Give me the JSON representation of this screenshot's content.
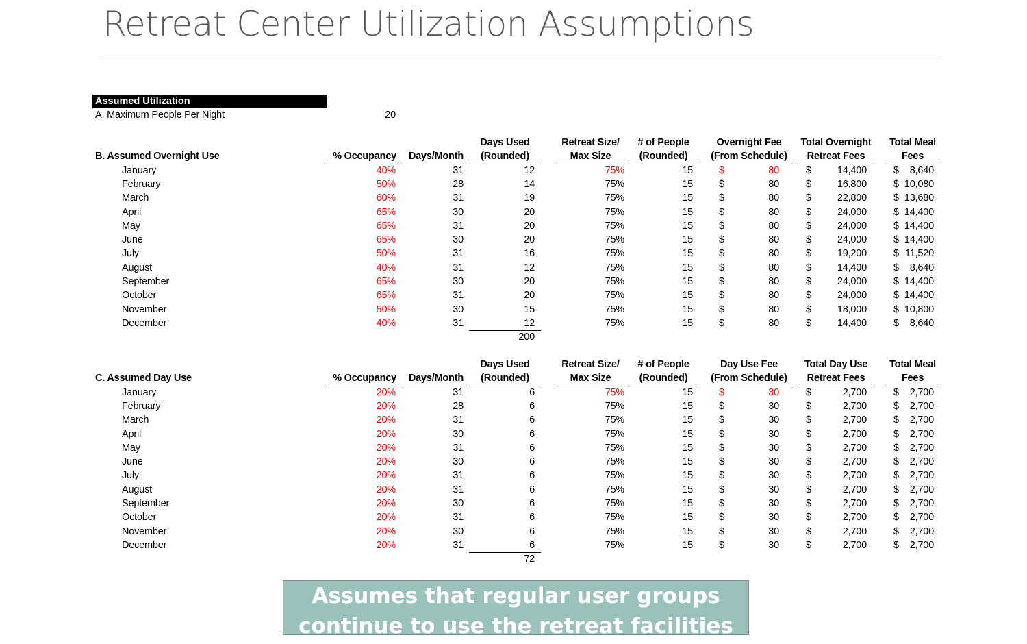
{
  "title": "Retreat Center Utilization Assumptions",
  "assumed_utilization_header": "Assumed Utilization",
  "section_a": {
    "label": "A.  Maximum People Per Night",
    "value": "20"
  },
  "overnight": {
    "title": "B.  Assumed Overnight Use",
    "headers": {
      "occupancy": [
        "",
        "% Occupancy"
      ],
      "days_month": [
        "",
        "Days/Month"
      ],
      "days_used": [
        "Days Used",
        "(Rounded)"
      ],
      "retreat_size": [
        "Retreat Size/",
        "Max Size"
      ],
      "people": [
        "# of People",
        "(Rounded)"
      ],
      "fee": [
        "Overnight  Fee",
        "(From Schedule)"
      ],
      "total_fees": [
        "Total Overnight",
        "Retreat Fees"
      ],
      "meal": [
        "Total Meal",
        "Fees"
      ]
    },
    "rows": [
      {
        "month": "January",
        "occ": "40%",
        "dpm": "31",
        "du": "12",
        "size": "75%",
        "ppl": "15",
        "fee": "80",
        "total": "14,400",
        "meal": "8,640",
        "highlight": true
      },
      {
        "month": "February",
        "occ": "50%",
        "dpm": "28",
        "du": "14",
        "size": "75%",
        "ppl": "15",
        "fee": "80",
        "total": "16,800",
        "meal": "10,080"
      },
      {
        "month": "March",
        "occ": "60%",
        "dpm": "31",
        "du": "19",
        "size": "75%",
        "ppl": "15",
        "fee": "80",
        "total": "22,800",
        "meal": "13,680"
      },
      {
        "month": "April",
        "occ": "65%",
        "dpm": "30",
        "du": "20",
        "size": "75%",
        "ppl": "15",
        "fee": "80",
        "total": "24,000",
        "meal": "14,400"
      },
      {
        "month": "May",
        "occ": "65%",
        "dpm": "31",
        "du": "20",
        "size": "75%",
        "ppl": "15",
        "fee": "80",
        "total": "24,000",
        "meal": "14,400"
      },
      {
        "month": "June",
        "occ": "65%",
        "dpm": "30",
        "du": "20",
        "size": "75%",
        "ppl": "15",
        "fee": "80",
        "total": "24,000",
        "meal": "14,400"
      },
      {
        "month": "July",
        "occ": "50%",
        "dpm": "31",
        "du": "16",
        "size": "75%",
        "ppl": "15",
        "fee": "80",
        "total": "19,200",
        "meal": "11,520"
      },
      {
        "month": "August",
        "occ": "40%",
        "dpm": "31",
        "du": "12",
        "size": "75%",
        "ppl": "15",
        "fee": "80",
        "total": "14,400",
        "meal": "8,640"
      },
      {
        "month": "September",
        "occ": "65%",
        "dpm": "30",
        "du": "20",
        "size": "75%",
        "ppl": "15",
        "fee": "80",
        "total": "24,000",
        "meal": "14,400"
      },
      {
        "month": "October",
        "occ": "65%",
        "dpm": "31",
        "du": "20",
        "size": "75%",
        "ppl": "15",
        "fee": "80",
        "total": "24,000",
        "meal": "14,400"
      },
      {
        "month": "November",
        "occ": "50%",
        "dpm": "30",
        "du": "15",
        "size": "75%",
        "ppl": "15",
        "fee": "80",
        "total": "18,000",
        "meal": "10,800"
      },
      {
        "month": "December",
        "occ": "40%",
        "dpm": "31",
        "du": "12",
        "size": "75%",
        "ppl": "15",
        "fee": "80",
        "total": "14,400",
        "meal": "8,640"
      }
    ],
    "total_days": "200"
  },
  "dayuse": {
    "title": "C.  Assumed Day Use",
    "headers": {
      "occupancy": [
        "",
        "% Occupancy"
      ],
      "days_month": [
        "",
        "Days/Month"
      ],
      "days_used": [
        "Days Used",
        "(Rounded)"
      ],
      "retreat_size": [
        "Retreat Size/",
        "Max Size"
      ],
      "people": [
        "# of People",
        "(Rounded)"
      ],
      "fee": [
        "Day Use  Fee",
        "(From Schedule)"
      ],
      "total_fees": [
        "Total Day Use",
        "Retreat Fees"
      ],
      "meal": [
        "Total Meal",
        "Fees"
      ]
    },
    "rows": [
      {
        "month": "January",
        "occ": "20%",
        "dpm": "31",
        "du": "6",
        "size": "75%",
        "ppl": "15",
        "fee": "30",
        "total": "2,700",
        "meal": "2,700",
        "highlight": true
      },
      {
        "month": "February",
        "occ": "20%",
        "dpm": "28",
        "du": "6",
        "size": "75%",
        "ppl": "15",
        "fee": "30",
        "total": "2,700",
        "meal": "2,700"
      },
      {
        "month": "March",
        "occ": "20%",
        "dpm": "31",
        "du": "6",
        "size": "75%",
        "ppl": "15",
        "fee": "30",
        "total": "2,700",
        "meal": "2,700"
      },
      {
        "month": "April",
        "occ": "20%",
        "dpm": "30",
        "du": "6",
        "size": "75%",
        "ppl": "15",
        "fee": "30",
        "total": "2,700",
        "meal": "2,700"
      },
      {
        "month": "May",
        "occ": "20%",
        "dpm": "31",
        "du": "6",
        "size": "75%",
        "ppl": "15",
        "fee": "30",
        "total": "2,700",
        "meal": "2,700"
      },
      {
        "month": "June",
        "occ": "20%",
        "dpm": "30",
        "du": "6",
        "size": "75%",
        "ppl": "15",
        "fee": "30",
        "total": "2,700",
        "meal": "2,700"
      },
      {
        "month": "July",
        "occ": "20%",
        "dpm": "31",
        "du": "6",
        "size": "75%",
        "ppl": "15",
        "fee": "30",
        "total": "2,700",
        "meal": "2,700"
      },
      {
        "month": "August",
        "occ": "20%",
        "dpm": "31",
        "du": "6",
        "size": "75%",
        "ppl": "15",
        "fee": "30",
        "total": "2,700",
        "meal": "2,700"
      },
      {
        "month": "September",
        "occ": "20%",
        "dpm": "30",
        "du": "6",
        "size": "75%",
        "ppl": "15",
        "fee": "30",
        "total": "2,700",
        "meal": "2,700"
      },
      {
        "month": "October",
        "occ": "20%",
        "dpm": "31",
        "du": "6",
        "size": "75%",
        "ppl": "15",
        "fee": "30",
        "total": "2,700",
        "meal": "2,700"
      },
      {
        "month": "November",
        "occ": "20%",
        "dpm": "30",
        "du": "6",
        "size": "75%",
        "ppl": "15",
        "fee": "30",
        "total": "2,700",
        "meal": "2,700"
      },
      {
        "month": "December",
        "occ": "20%",
        "dpm": "31",
        "du": "6",
        "size": "75%",
        "ppl": "15",
        "fee": "30",
        "total": "2,700",
        "meal": "2,700"
      }
    ],
    "total_days": "72"
  },
  "currency_symbol": "$",
  "callout_lines": [
    "Assumes that regular user groups",
    "continue to use the retreat facilities"
  ],
  "colors": {
    "input_red": "#ff0000",
    "callout_bg": "#9ac1bc",
    "title_gray": "#595959"
  }
}
